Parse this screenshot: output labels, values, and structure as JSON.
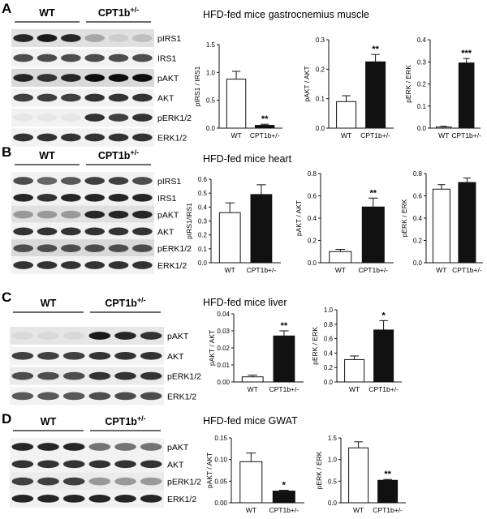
{
  "panels": [
    {
      "letter": "A",
      "title": "HFD-fed mice gastrocnemius muscle",
      "blot": {
        "groups": [
          "WT",
          "CPT1b"
        ],
        "group_superscript": [
          "",
          "+/-"
        ],
        "lanes_per_group": 3,
        "bands": [
          {
            "label": "pIRS1",
            "int": [
              0.85,
              0.9,
              0.85,
              0.35,
              0.2,
              0.25
            ],
            "bg": 0.12
          },
          {
            "label": "IRS1",
            "int": [
              0.7,
              0.7,
              0.7,
              0.7,
              0.7,
              0.7
            ],
            "bg": 0.05
          },
          {
            "label": "pAKT",
            "int": [
              0.85,
              0.8,
              0.85,
              0.95,
              0.95,
              0.95
            ],
            "bg": 0.15
          },
          {
            "label": "AKT",
            "int": [
              0.75,
              0.75,
              0.75,
              0.8,
              0.8,
              0.8
            ],
            "bg": 0.05
          },
          {
            "label": "pERK1/2",
            "int": [
              0.1,
              0.1,
              0.1,
              0.8,
              0.75,
              0.8
            ],
            "bg": 0.05
          },
          {
            "label": "ERK1/2",
            "int": [
              0.8,
              0.8,
              0.8,
              0.8,
              0.8,
              0.8
            ],
            "bg": 0.05
          }
        ]
      }
    },
    {
      "letter": "B",
      "title": "HFD-fed mice heart",
      "blot": {
        "groups": [
          "WT",
          "CPT1b"
        ],
        "group_superscript": [
          "",
          "+/-"
        ],
        "lanes_per_group": 3,
        "bands": [
          {
            "label": "pIRS1",
            "int": [
              0.7,
              0.6,
              0.65,
              0.75,
              0.75,
              0.7
            ],
            "bg": 0.05
          },
          {
            "label": "IRS1",
            "int": [
              0.85,
              0.8,
              0.85,
              0.85,
              0.85,
              0.85
            ],
            "bg": 0.05
          },
          {
            "label": "pAKT",
            "int": [
              0.4,
              0.4,
              0.4,
              0.85,
              0.85,
              0.85
            ],
            "bg": 0.12
          },
          {
            "label": "AKT",
            "int": [
              0.8,
              0.8,
              0.8,
              0.8,
              0.8,
              0.8
            ],
            "bg": 0.05
          },
          {
            "label": "pERK1/2",
            "int": [
              0.7,
              0.7,
              0.7,
              0.7,
              0.7,
              0.7
            ],
            "bg": 0.15
          },
          {
            "label": "ERK1/2",
            "int": [
              0.8,
              0.8,
              0.8,
              0.8,
              0.8,
              0.8
            ],
            "bg": 0.05
          }
        ]
      }
    },
    {
      "letter": "C",
      "title": "HFD-fed mice liver",
      "blot": {
        "groups": [
          "WT",
          "CPT1b"
        ],
        "group_superscript": [
          "",
          "+/-"
        ],
        "lanes_per_group": 3,
        "bands": [
          {
            "label": "pAKT",
            "int": [
              0.15,
              0.15,
              0.15,
              0.9,
              0.85,
              0.8
            ],
            "bg": 0.1
          },
          {
            "label": "AKT",
            "int": [
              0.75,
              0.75,
              0.75,
              0.8,
              0.8,
              0.8
            ],
            "bg": 0.05
          },
          {
            "label": "pERK1/2",
            "int": [
              0.7,
              0.7,
              0.7,
              0.8,
              0.8,
              0.8
            ],
            "bg": 0.08
          },
          {
            "label": "ERK1/2",
            "int": [
              0.65,
              0.65,
              0.65,
              0.7,
              0.7,
              0.7
            ],
            "bg": 0.05
          }
        ]
      }
    },
    {
      "letter": "D",
      "title": "HFD-fed mice GWAT",
      "blot": {
        "groups": [
          "WT",
          "CPT1b"
        ],
        "group_superscript": [
          "",
          "+/-"
        ],
        "lanes_per_group": 3,
        "bands": [
          {
            "label": "pAKT",
            "int": [
              0.85,
              0.85,
              0.85,
              0.55,
              0.55,
              0.55
            ],
            "bg": 0.05
          },
          {
            "label": "AKT",
            "int": [
              0.8,
              0.8,
              0.8,
              0.8,
              0.8,
              0.8
            ],
            "bg": 0.05
          },
          {
            "label": "pERK1/2",
            "int": [
              0.75,
              0.75,
              0.75,
              0.4,
              0.4,
              0.4
            ],
            "bg": 0.08
          },
          {
            "label": "ERK1/2",
            "int": [
              0.85,
              0.85,
              0.85,
              0.85,
              0.85,
              0.85
            ],
            "bg": 0.05
          }
        ]
      }
    }
  ],
  "chart_data": [
    {
      "type": "bar",
      "panel": "A",
      "categories": [
        "WT",
        "CPT1b+/-"
      ],
      "values": [
        0.88,
        0.05
      ],
      "errors": [
        0.14,
        0.02
      ],
      "ylabel": "pIRS1 / IRS1",
      "ylim": [
        0,
        1.5
      ],
      "yticks": [
        "0.0",
        "0.5",
        "1.0",
        "1.5"
      ],
      "significance": [
        "",
        "**"
      ],
      "colors": [
        "#ffffff",
        "#111111"
      ]
    },
    {
      "type": "bar",
      "panel": "A",
      "categories": [
        "WT",
        "CPT1b+/-"
      ],
      "values": [
        0.09,
        0.225
      ],
      "errors": [
        0.02,
        0.025
      ],
      "ylabel": "pAKT / AKT",
      "ylim": [
        0,
        0.3
      ],
      "yticks": [
        "0.0",
        "0.1",
        "0.2",
        "0.3"
      ],
      "significance": [
        "",
        "**"
      ],
      "colors": [
        "#ffffff",
        "#111111"
      ]
    },
    {
      "type": "bar",
      "panel": "A",
      "categories": [
        "WT",
        "CPT1b+/-"
      ],
      "values": [
        0.005,
        0.295
      ],
      "errors": [
        0.003,
        0.02
      ],
      "ylabel": "pERK / ERK",
      "ylim": [
        0,
        0.4
      ],
      "yticks": [
        "0.0",
        "0.1",
        "0.2",
        "0.3",
        "0.4"
      ],
      "significance": [
        "",
        "***"
      ],
      "colors": [
        "#ffffff",
        "#111111"
      ]
    },
    {
      "type": "bar",
      "panel": "B",
      "categories": [
        "WT",
        "CPT1b+/-"
      ],
      "values": [
        0.36,
        0.49
      ],
      "errors": [
        0.07,
        0.07
      ],
      "ylabel": "pIRS1/IRS1",
      "ylim": [
        0,
        0.6
      ],
      "yticks": [
        "0.0",
        "0.1",
        "0.2",
        "0.3",
        "0.4",
        "0.5",
        "0.6"
      ],
      "significance": [
        "",
        ""
      ],
      "colors": [
        "#ffffff",
        "#111111"
      ]
    },
    {
      "type": "bar",
      "panel": "B",
      "categories": [
        "WT",
        "CPT1b+/-"
      ],
      "values": [
        0.1,
        0.5
      ],
      "errors": [
        0.02,
        0.08
      ],
      "ylabel": "pAKT / AKT",
      "ylim": [
        0,
        0.8
      ],
      "yticks": [
        "0.0",
        "0.2",
        "0.4",
        "0.6",
        "0.8"
      ],
      "significance": [
        "",
        "**"
      ],
      "colors": [
        "#ffffff",
        "#111111"
      ]
    },
    {
      "type": "bar",
      "panel": "B",
      "categories": [
        "WT",
        "CPT1b+/-"
      ],
      "values": [
        0.66,
        0.72
      ],
      "errors": [
        0.04,
        0.04
      ],
      "ylabel": "pERK / ERK",
      "ylim": [
        0,
        0.8
      ],
      "yticks": [
        "0.0",
        "0.2",
        "0.4",
        "0.6",
        "0.8"
      ],
      "significance": [
        "",
        ""
      ],
      "colors": [
        "#ffffff",
        "#111111"
      ]
    },
    {
      "type": "bar",
      "panel": "C",
      "categories": [
        "WT",
        "CPT1b+/-"
      ],
      "values": [
        0.003,
        0.027
      ],
      "errors": [
        0.001,
        0.003
      ],
      "ylabel": "pAKT / AKT",
      "ylim": [
        0,
        0.04
      ],
      "yticks": [
        "0.00",
        "0.01",
        "0.02",
        "0.03",
        "0.04"
      ],
      "significance": [
        "",
        "**"
      ],
      "colors": [
        "#ffffff",
        "#111111"
      ]
    },
    {
      "type": "bar",
      "panel": "C",
      "categories": [
        "WT",
        "CPT1b+/-"
      ],
      "values": [
        0.31,
        0.72
      ],
      "errors": [
        0.05,
        0.13
      ],
      "ylabel": "pERK / ERK",
      "ylim": [
        0,
        1.0
      ],
      "yticks": [
        "0.0",
        "0.2",
        "0.4",
        "0.6",
        "0.8",
        "1.0"
      ],
      "significance": [
        "",
        "*"
      ],
      "colors": [
        "#ffffff",
        "#111111"
      ]
    },
    {
      "type": "bar",
      "panel": "D",
      "categories": [
        "WT",
        "CPT1b+/-"
      ],
      "values": [
        0.095,
        0.027
      ],
      "errors": [
        0.02,
        0.002
      ],
      "ylabel": "pAKT / AKT",
      "ylim": [
        0,
        0.15
      ],
      "yticks": [
        "0.00",
        "0.05",
        "0.10",
        "0.15"
      ],
      "significance": [
        "",
        "*"
      ],
      "colors": [
        "#ffffff",
        "#111111"
      ]
    },
    {
      "type": "bar",
      "panel": "D",
      "categories": [
        "WT",
        "CPT1b+/-"
      ],
      "values": [
        1.27,
        0.52
      ],
      "errors": [
        0.14,
        0.02
      ],
      "ylabel": "pERK / ERK",
      "ylim": [
        0,
        1.5
      ],
      "yticks": [
        "0.0",
        "0.5",
        "1.0",
        "1.5"
      ],
      "significance": [
        "",
        "**"
      ],
      "colors": [
        "#ffffff",
        "#111111"
      ]
    }
  ]
}
